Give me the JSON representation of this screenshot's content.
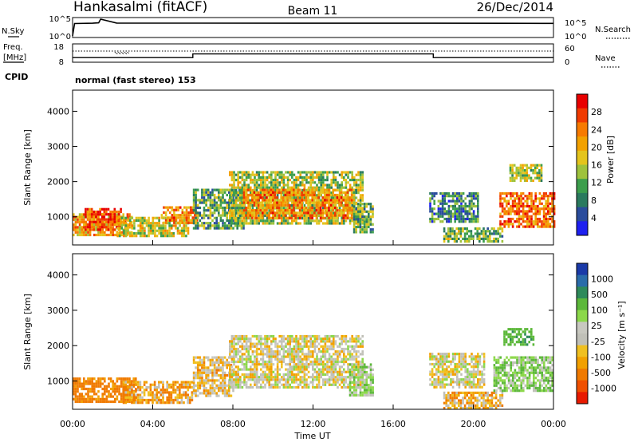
{
  "header": {
    "station": "Hankasalmi (fitACF)",
    "beam": "Beam 11",
    "date": "26/Dec/2014"
  },
  "top_panels": {
    "nsky_label": "N.Sky",
    "nsearch_label": "N.Search",
    "nsky_ticks": [
      "10^5",
      "10^0"
    ],
    "nsearch_ticks": [
      "10^5",
      "10^0"
    ],
    "freq_label_1": "Freq.",
    "freq_label_2": "[MHz]",
    "freq_ticks": [
      "18",
      "8"
    ],
    "nave_label": "Nave",
    "nave_ticks": [
      "60",
      "0"
    ],
    "cpid_label": "CPID",
    "cpid_text": "normal (fast stereo) 153"
  },
  "power_colorbar": {
    "title": "Power [dB]",
    "ticks": [
      "28",
      "24",
      "20",
      "16",
      "12",
      "8",
      "4"
    ],
    "colors": [
      "#e80000",
      "#f03a00",
      "#f77a00",
      "#f2a100",
      "#e4c41c",
      "#9ec23c",
      "#3c9e4c",
      "#2a7a5e",
      "#2a4c9c",
      "#1e20f0"
    ]
  },
  "velocity_colorbar": {
    "title": "Velocity [m s⁻¹]",
    "ticks": [
      "1000",
      "500",
      "100",
      "25",
      "-25",
      "-100",
      "-500",
      "-1000"
    ],
    "colors": [
      "#1a3aa8",
      "#2a6caa",
      "#2e8a5a",
      "#5cb83a",
      "#8cd84a",
      "#c8c8c0",
      "#c0c0b8",
      "#f0c020",
      "#f2a000",
      "#f07a00",
      "#f05000",
      "#e81a00"
    ]
  },
  "chart_data": [
    {
      "type": "heatmap",
      "name": "power",
      "ylabel": "Slant Range [km]",
      "xlabel": "Time UT",
      "ylim": [
        200,
        4600
      ],
      "yticks": [
        1000,
        2000,
        3000,
        4000
      ],
      "xticks": [
        "00:00",
        "04:00",
        "08:00",
        "12:00",
        "16:00",
        "20:00",
        "00:00"
      ],
      "scatter_blocks": [
        {
          "t0": 0.0,
          "t1": 3.0,
          "r0": 500,
          "r1": 1100,
          "power": 22
        },
        {
          "t0": 0.6,
          "t1": 2.4,
          "r0": 600,
          "r1": 1250,
          "power": 28
        },
        {
          "t0": 2.2,
          "t1": 5.8,
          "r0": 450,
          "r1": 1000,
          "power": 18
        },
        {
          "t0": 4.4,
          "t1": 6.2,
          "r0": 800,
          "r1": 1300,
          "power": 24
        },
        {
          "t0": 6.0,
          "t1": 8.5,
          "r0": 700,
          "r1": 1800,
          "power": 12
        },
        {
          "t0": 7.8,
          "t1": 14.5,
          "r0": 800,
          "r1": 2300,
          "power": 16
        },
        {
          "t0": 8.5,
          "t1": 14.0,
          "r0": 1000,
          "r1": 1800,
          "power": 24
        },
        {
          "t0": 14.0,
          "t1": 15.0,
          "r0": 600,
          "r1": 1400,
          "power": 12
        },
        {
          "t0": 17.8,
          "t1": 20.2,
          "r0": 900,
          "r1": 1700,
          "power": 10
        },
        {
          "t0": 18.5,
          "t1": 21.5,
          "r0": 300,
          "r1": 700,
          "power": 14
        },
        {
          "t0": 21.3,
          "t1": 24.0,
          "r0": 700,
          "r1": 1700,
          "power": 26
        },
        {
          "t0": 21.8,
          "t1": 23.4,
          "r0": 2000,
          "r1": 2500,
          "power": 16
        }
      ]
    },
    {
      "type": "heatmap",
      "name": "velocity",
      "ylabel": "Slant Range [km]",
      "xlabel": "Time UT",
      "ylim": [
        200,
        4600
      ],
      "yticks": [
        1000,
        2000,
        3000,
        4000
      ],
      "xticks": [
        "00:00",
        "04:00",
        "08:00",
        "12:00",
        "16:00",
        "20:00",
        "00:00"
      ],
      "scatter_blocks": [
        {
          "t0": 0.0,
          "t1": 3.2,
          "r0": 450,
          "r1": 1100,
          "velocity": -150
        },
        {
          "t0": 2.5,
          "t1": 6.0,
          "r0": 400,
          "r1": 1000,
          "velocity": -80
        },
        {
          "t0": 6.0,
          "t1": 8.0,
          "r0": 600,
          "r1": 1700,
          "velocity": -30
        },
        {
          "t0": 7.8,
          "t1": 14.5,
          "r0": 800,
          "r1": 2300,
          "velocity": 0
        },
        {
          "t0": 13.8,
          "t1": 15.0,
          "r0": 600,
          "r1": 1500,
          "velocity": 60
        },
        {
          "t0": 17.8,
          "t1": 20.5,
          "r0": 800,
          "r1": 1800,
          "velocity": 0
        },
        {
          "t0": 18.5,
          "t1": 21.5,
          "r0": 250,
          "r1": 700,
          "velocity": -60
        },
        {
          "t0": 21.0,
          "t1": 24.0,
          "r0": 700,
          "r1": 1700,
          "velocity": 80
        },
        {
          "t0": 21.5,
          "t1": 23.0,
          "r0": 2000,
          "r1": 2500,
          "velocity": 200
        }
      ]
    },
    {
      "type": "line",
      "name": "N.Sky / N.Search",
      "x": [
        0,
        0.1,
        1.0,
        1.3,
        1.4,
        2.2,
        6.0,
        12.0,
        18.0,
        23.5,
        24.0
      ],
      "y": [
        1,
        5000,
        6000,
        8000,
        100000,
        7000,
        6500,
        6000,
        6000,
        5500,
        5500
      ]
    },
    {
      "type": "line",
      "name": "Freq / Nave",
      "freq_x": [
        0,
        6.0,
        6.0,
        18.0,
        18.0,
        24.0
      ],
      "freq_y": [
        10.0,
        10.0,
        12.4,
        12.4,
        10.0,
        10.0
      ],
      "nave_level": 38
    }
  ]
}
